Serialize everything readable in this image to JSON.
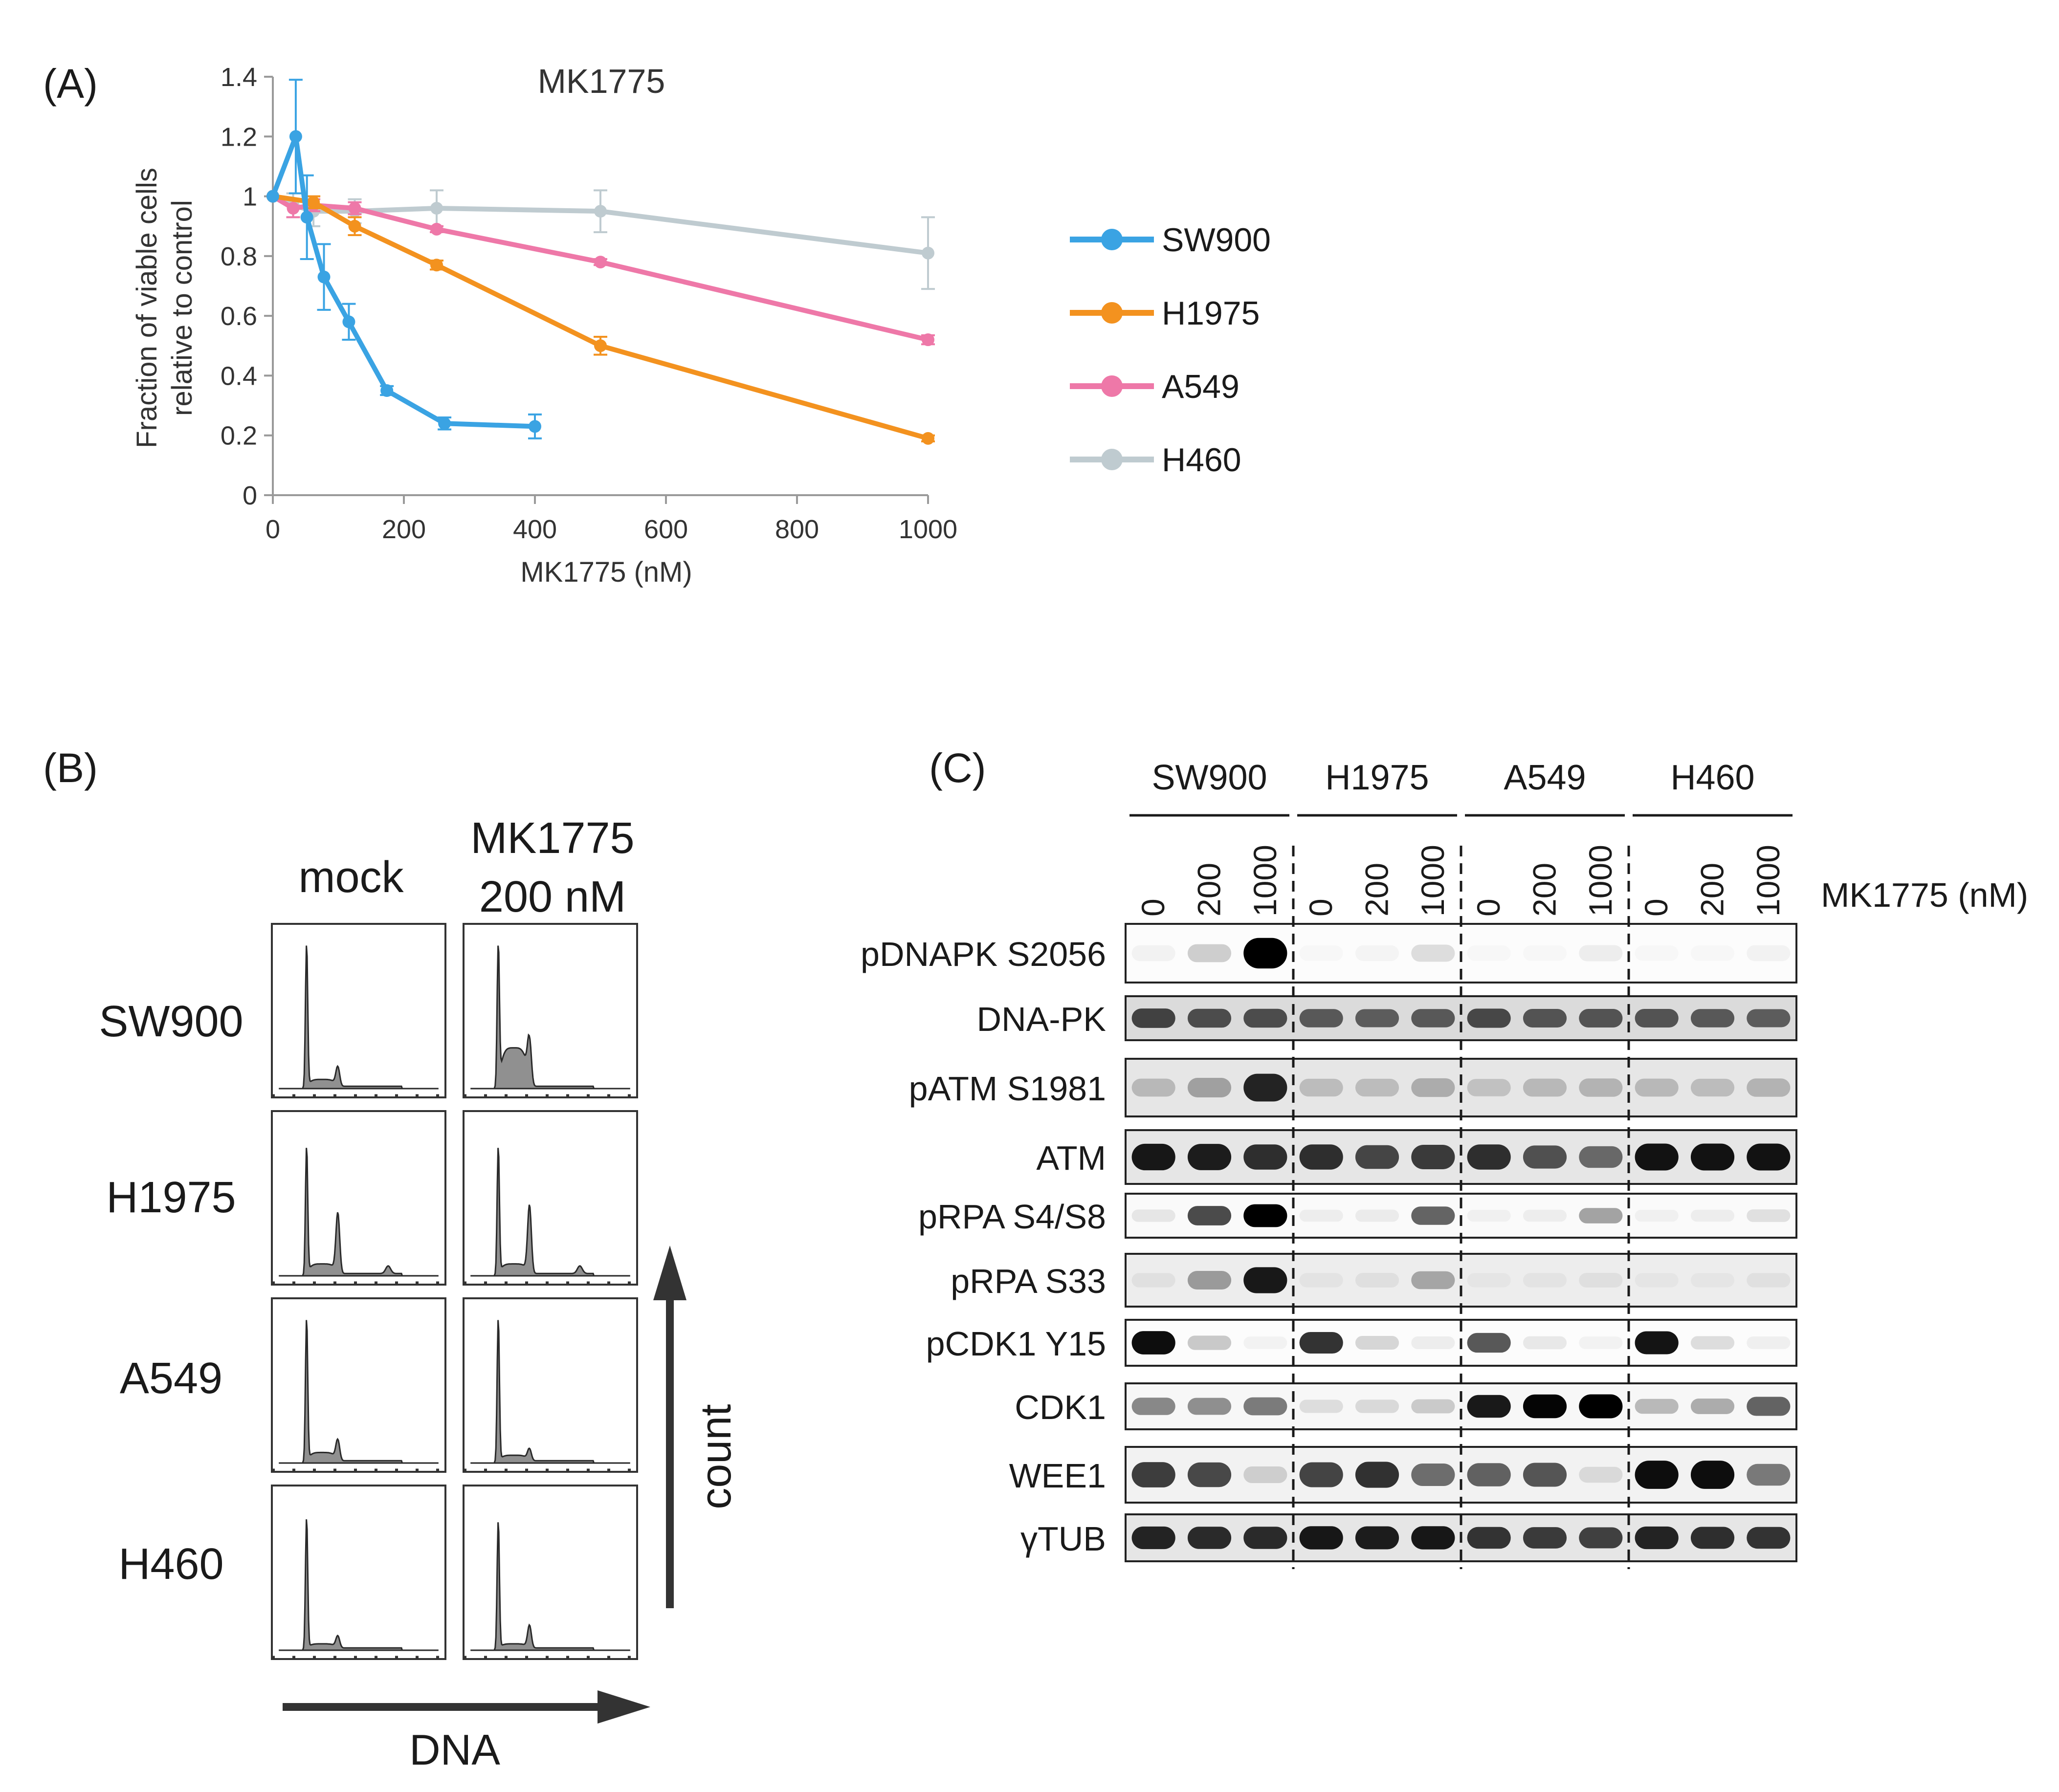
{
  "panels": {
    "a_label": "(A)",
    "b_label": "(B)",
    "c_label": "(C)"
  },
  "chart_data": {
    "type": "line",
    "title": "MK1775",
    "xlabel": "MK1775 (nM)",
    "ylabel_line1": "Fraction of viable cells",
    "ylabel_line2": "relative to control",
    "xlim": [
      0,
      1000
    ],
    "ylim": [
      0,
      1.4
    ],
    "xticks": [
      0,
      200,
      400,
      600,
      800,
      1000
    ],
    "yticks": [
      0,
      0.2,
      0.4,
      0.6,
      0.8,
      1,
      1.2,
      1.4
    ],
    "xtick_labels": [
      "0",
      "200",
      "400",
      "600",
      "800",
      "1000"
    ],
    "ytick_labels": [
      "0",
      "0.2",
      "0.4",
      "0.6",
      "0.8",
      "1",
      "1.2",
      "1.4"
    ],
    "series": [
      {
        "name": "SW900",
        "color": "#3aa3e3",
        "points": [
          {
            "x": 0,
            "y": 1.0,
            "err": 0.0
          },
          {
            "x": 35,
            "y": 1.2,
            "err": 0.19
          },
          {
            "x": 52,
            "y": 0.93,
            "err": 0.14
          },
          {
            "x": 78,
            "y": 0.73,
            "err": 0.11
          },
          {
            "x": 116,
            "y": 0.58,
            "err": 0.06
          },
          {
            "x": 174,
            "y": 0.35,
            "err": 0.015
          },
          {
            "x": 262,
            "y": 0.24,
            "err": 0.02
          },
          {
            "x": 400,
            "y": 0.23,
            "err": 0.04
          }
        ]
      },
      {
        "name": "H1975",
        "color": "#f3921f",
        "points": [
          {
            "x": 0,
            "y": 1.0,
            "err": 0.0
          },
          {
            "x": 62,
            "y": 0.98,
            "err": 0.02
          },
          {
            "x": 125,
            "y": 0.9,
            "err": 0.03
          },
          {
            "x": 250,
            "y": 0.77,
            "err": 0.015
          },
          {
            "x": 500,
            "y": 0.5,
            "err": 0.03
          },
          {
            "x": 1000,
            "y": 0.19,
            "err": 0.01
          }
        ]
      },
      {
        "name": "A549",
        "color": "#ee78a8",
        "points": [
          {
            "x": 0,
            "y": 1.0,
            "err": 0.0
          },
          {
            "x": 31,
            "y": 0.96,
            "err": 0.03
          },
          {
            "x": 62,
            "y": 0.97,
            "err": 0.02
          },
          {
            "x": 125,
            "y": 0.96,
            "err": 0.02
          },
          {
            "x": 250,
            "y": 0.89,
            "err": 0.01
          },
          {
            "x": 500,
            "y": 0.78,
            "err": 0.01
          },
          {
            "x": 1000,
            "y": 0.52,
            "err": 0.015
          }
        ]
      },
      {
        "name": "H460",
        "color": "#bfcbd0",
        "points": [
          {
            "x": 0,
            "y": 1.0,
            "err": 0.0
          },
          {
            "x": 31,
            "y": 0.97,
            "err": 0.04
          },
          {
            "x": 62,
            "y": 0.95,
            "err": 0.05
          },
          {
            "x": 125,
            "y": 0.95,
            "err": 0.04
          },
          {
            "x": 250,
            "y": 0.96,
            "err": 0.06
          },
          {
            "x": 500,
            "y": 0.95,
            "err": 0.07
          },
          {
            "x": 1000,
            "y": 0.81,
            "err": 0.12
          }
        ]
      }
    ]
  },
  "flow": {
    "col_mock": "mock",
    "col_treat_line1": "MK1775",
    "col_treat_line2": "200 nM",
    "rows": [
      "SW900",
      "H1975",
      "A549",
      "H460"
    ],
    "x_axis_label": "DNA",
    "y_axis_label": "count",
    "histograms": [
      {
        "mock": {
          "g1_peak": 0.95,
          "g2_peak": 0.13,
          "s_level": 0.05,
          "poly_peak": 0.0
        },
        "treat": {
          "g1_peak": 0.95,
          "g2_peak": 0.32,
          "s_level": 0.28,
          "poly_peak": 0.0
        }
      },
      {
        "mock": {
          "g1_peak": 0.85,
          "g2_peak": 0.4,
          "s_level": 0.07,
          "poly_peak": 0.05
        },
        "treat": {
          "g1_peak": 0.85,
          "g2_peak": 0.45,
          "s_level": 0.07,
          "poly_peak": 0.05
        }
      },
      {
        "mock": {
          "g1_peak": 0.95,
          "g2_peak": 0.14,
          "s_level": 0.06,
          "poly_peak": 0.0
        },
        "treat": {
          "g1_peak": 0.95,
          "g2_peak": 0.08,
          "s_level": 0.04,
          "poly_peak": 0.0
        }
      },
      {
        "mock": {
          "g1_peak": 0.87,
          "g2_peak": 0.08,
          "s_level": 0.03,
          "poly_peak": 0.0
        },
        "treat": {
          "g1_peak": 0.85,
          "g2_peak": 0.15,
          "s_level": 0.03,
          "poly_peak": 0.0
        }
      }
    ]
  },
  "western": {
    "cell_lines": [
      "SW900",
      "H1975",
      "A549",
      "H460"
    ],
    "doses": [
      "0",
      "200",
      "1000"
    ],
    "dose_unit": "MK1775 (nM)",
    "blots": [
      {
        "label": "pDNAPK S2056",
        "bg": 0.99,
        "intensities": [
          0.04,
          0.18,
          1.0,
          0.02,
          0.03,
          0.12,
          0.02,
          0.02,
          0.06,
          0.01,
          0.02,
          0.04
        ]
      },
      {
        "label": "DNA-PK",
        "bg": 0.86,
        "intensities": [
          0.7,
          0.65,
          0.65,
          0.6,
          0.58,
          0.6,
          0.68,
          0.62,
          0.62,
          0.62,
          0.6,
          0.58
        ]
      },
      {
        "label": "pATM S1981",
        "bg": 0.9,
        "intensities": [
          0.2,
          0.3,
          0.85,
          0.18,
          0.18,
          0.25,
          0.16,
          0.2,
          0.22,
          0.2,
          0.18,
          0.22
        ]
      },
      {
        "label": "ATM",
        "bg": 0.9,
        "intensities": [
          0.9,
          0.88,
          0.8,
          0.8,
          0.7,
          0.75,
          0.8,
          0.65,
          0.55,
          0.92,
          0.92,
          0.92
        ]
      },
      {
        "label": "pRPA S4/S8",
        "bg": 0.98,
        "intensities": [
          0.08,
          0.7,
          1.0,
          0.05,
          0.06,
          0.6,
          0.04,
          0.05,
          0.35,
          0.04,
          0.05,
          0.1
        ]
      },
      {
        "label": "pRPA S33",
        "bg": 0.93,
        "intensities": [
          0.05,
          0.35,
          0.9,
          0.04,
          0.06,
          0.3,
          0.03,
          0.04,
          0.06,
          0.03,
          0.03,
          0.05
        ]
      },
      {
        "label": "pCDK1 Y15",
        "bg": 0.99,
        "intensities": [
          0.95,
          0.2,
          0.04,
          0.8,
          0.15,
          0.06,
          0.65,
          0.08,
          0.04,
          0.92,
          0.12,
          0.05
        ]
      },
      {
        "label": "CDK1",
        "bg": 0.97,
        "intensities": [
          0.45,
          0.42,
          0.5,
          0.1,
          0.12,
          0.18,
          0.9,
          0.98,
          1.0,
          0.25,
          0.3,
          0.6
        ]
      },
      {
        "label": "WEE1",
        "bg": 0.95,
        "intensities": [
          0.75,
          0.7,
          0.15,
          0.72,
          0.8,
          0.55,
          0.6,
          0.65,
          0.1,
          0.95,
          0.95,
          0.5
        ]
      },
      {
        "label": "γTUB",
        "bg": 0.9,
        "intensities": [
          0.85,
          0.82,
          0.82,
          0.9,
          0.88,
          0.9,
          0.78,
          0.75,
          0.72,
          0.85,
          0.8,
          0.78
        ]
      }
    ]
  }
}
